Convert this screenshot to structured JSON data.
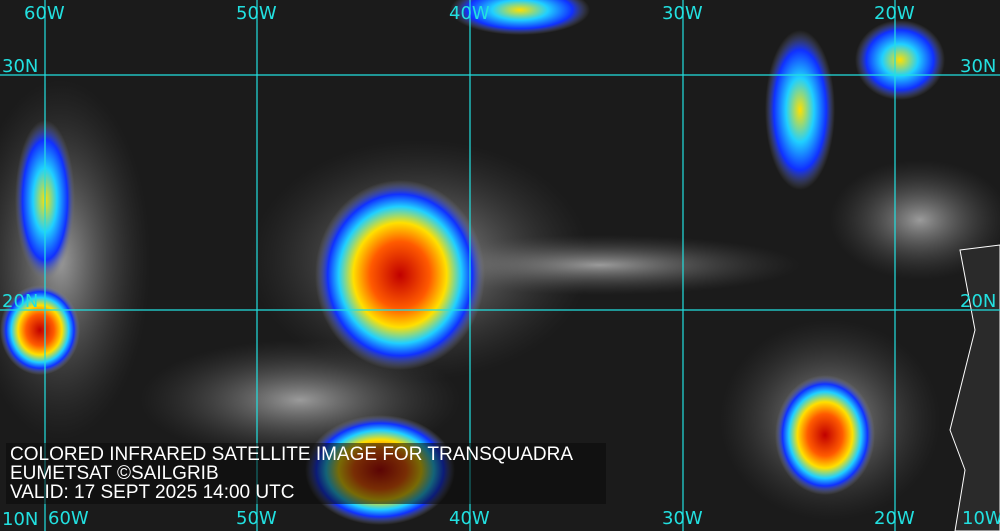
{
  "map": {
    "type": "colored infrared satellite image",
    "grid_color": "#22e0e0",
    "top_longitude_labels": [
      "60W",
      "50W",
      "40W",
      "30W",
      "20W"
    ],
    "bottom_longitude_labels": [
      "60W",
      "50W",
      "40W",
      "30W",
      "20W",
      "10W"
    ],
    "left_latitude_labels": [
      "30N",
      "20N",
      "10N"
    ],
    "right_latitude_labels": [
      "30N",
      "20N"
    ]
  },
  "caption": {
    "line1": "COLORED INFRARED SATELLITE IMAGE FOR TRANSQUADRA",
    "line2": "EUMETSAT ©SAILGRIB",
    "line3": "VALID:  17 SEPT 2025 14:00 UTC"
  }
}
